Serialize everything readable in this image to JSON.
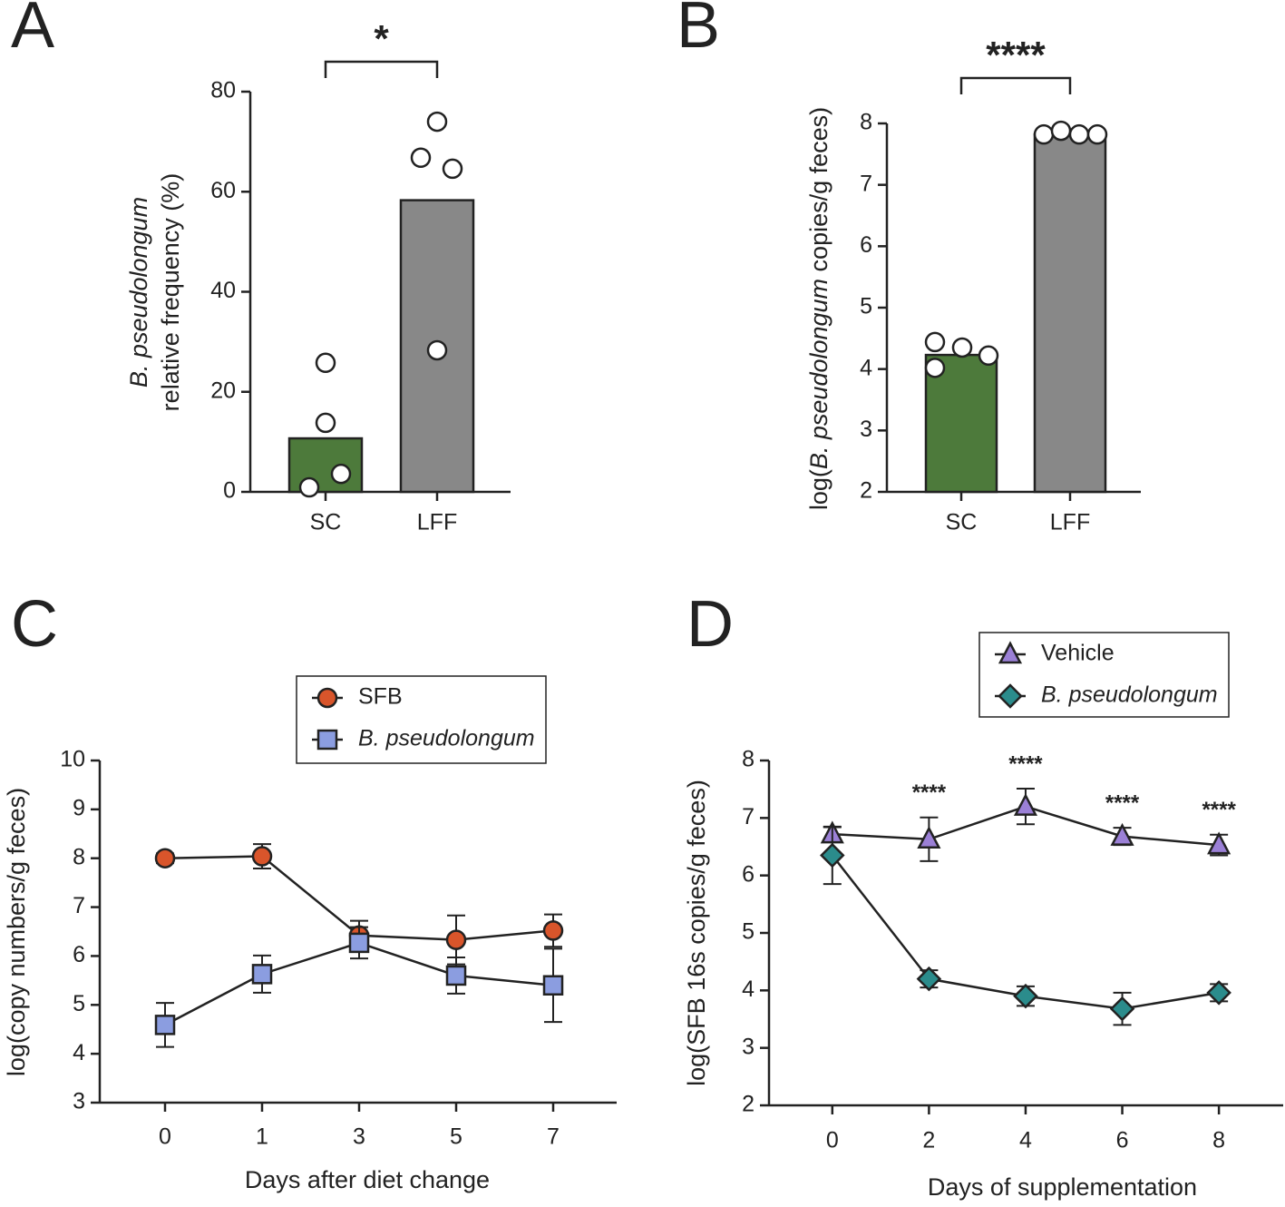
{
  "chart_data": [
    {
      "type": "bar",
      "panel": "A",
      "ylabel": [
        [
          {
            "text": "B. pseudolongum",
            "italic": true
          }
        ],
        [
          {
            "text": "relative frequency (%)"
          }
        ]
      ],
      "categories": [
        "SC",
        "LFF"
      ],
      "values": [
        10.7,
        58.3
      ],
      "colors": [
        "#4d7a3b",
        "#888888"
      ],
      "points": [
        [
          25.8,
          13.8,
          3.6,
          0.9
        ],
        [
          74,
          66.8,
          64.6,
          28.3
        ]
      ],
      "ylim": [
        0,
        80
      ],
      "yticks": [
        0,
        20,
        40,
        60,
        80
      ],
      "significance": "*"
    },
    {
      "type": "bar",
      "panel": "B",
      "ylabel": [
        [
          {
            "text": "log("
          },
          {
            "text": "B. pseudolongum",
            "italic": true
          },
          {
            "text": " copies/g feces)"
          }
        ]
      ],
      "categories": [
        "SC",
        "LFF"
      ],
      "values": [
        4.23,
        7.82
      ],
      "colors": [
        "#4d7a3b",
        "#888888"
      ],
      "points": [
        [
          4.44,
          4.35,
          4.22,
          4.02
        ],
        [
          7.82,
          7.88,
          7.82,
          7.82
        ]
      ],
      "ylim": [
        2,
        8
      ],
      "yticks": [
        2,
        3,
        4,
        5,
        6,
        7,
        8
      ],
      "significance": "****"
    },
    {
      "type": "line",
      "panel": "C",
      "xlabel": "Days after diet change",
      "ylabel": [
        [
          {
            "text": "log(copy numbers/g feces)"
          }
        ]
      ],
      "categories": [
        "0",
        "1",
        "3",
        "5",
        "7"
      ],
      "series": [
        {
          "name": "SFB",
          "color": "#d9552b",
          "marker": "circle",
          "values": [
            8.0,
            8.04,
            6.42,
            6.33,
            6.52
          ],
          "errors": [
            0.1,
            0.25,
            0.3,
            0.5,
            0.33
          ]
        },
        {
          "name": "B. pseudolongum",
          "italic": true,
          "color": "#8b9de0",
          "marker": "square",
          "values": [
            4.59,
            5.63,
            6.27,
            5.6,
            5.4
          ],
          "errors": [
            0.45,
            0.38,
            0.32,
            0.37,
            0.75
          ]
        }
      ],
      "ylim": [
        3,
        10
      ],
      "yticks": [
        3,
        4,
        5,
        6,
        7,
        8,
        9,
        10
      ]
    },
    {
      "type": "line",
      "panel": "D",
      "xlabel": "Days of supplementation",
      "ylabel": [
        [
          {
            "text": "log(SFB 16s copies/g feces)"
          }
        ]
      ],
      "x": [
        0,
        2,
        4,
        6,
        8
      ],
      "series": [
        {
          "name": "Vehicle",
          "color": "#9b80d6",
          "marker": "triangle",
          "values": [
            6.72,
            6.63,
            7.2,
            6.68,
            6.53
          ],
          "errors": [
            0.12,
            0.38,
            0.31,
            0.15,
            0.18
          ]
        },
        {
          "name": "B. pseudolongum",
          "italic": true,
          "color": "#2b8c8c",
          "marker": "diamond",
          "values": [
            6.35,
            4.2,
            3.9,
            3.68,
            3.96
          ],
          "errors": [
            0.5,
            0.15,
            0.17,
            0.28,
            0.15
          ]
        }
      ],
      "significance": [
        {
          "x": 2,
          "label": "****"
        },
        {
          "x": 4,
          "label": "****"
        },
        {
          "x": 6,
          "label": "****"
        },
        {
          "x": 8,
          "label": "****"
        }
      ],
      "xlim": [
        -1.31,
        9.33
      ],
      "xticks": [
        0,
        2,
        4,
        6,
        8
      ],
      "ylim": [
        2,
        8
      ],
      "yticks": [
        2,
        3,
        4,
        5,
        6,
        7,
        8
      ]
    }
  ]
}
